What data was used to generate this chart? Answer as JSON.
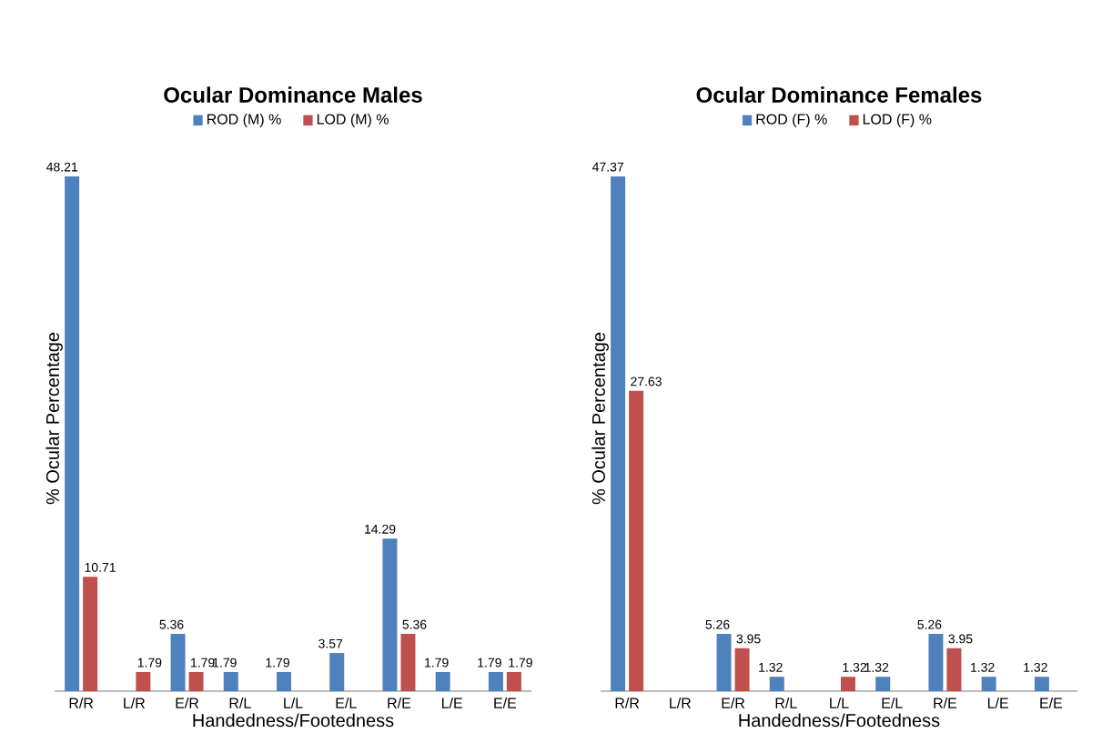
{
  "chart_data": [
    {
      "type": "bar",
      "title": "Ocular Dominance  Males",
      "xlabel": "Handedness/Footedness",
      "ylabel": "% Ocular Percentage",
      "categories": [
        "R/R",
        "L/R",
        "E/R",
        "R/L",
        "L/L",
        "E/L",
        "R/E",
        "L/E",
        "E/E"
      ],
      "legend": "top",
      "data_labels": true,
      "series": [
        {
          "name": "ROD (M) %",
          "color": "#4f81bd",
          "values": [
            48.21,
            null,
            5.36,
            1.79,
            1.79,
            3.57,
            14.29,
            1.79,
            1.79
          ]
        },
        {
          "name": "LOD (M) %",
          "color": "#c0504d",
          "values": [
            10.71,
            1.79,
            1.79,
            null,
            null,
            null,
            5.36,
            null,
            1.79
          ]
        }
      ]
    },
    {
      "type": "bar",
      "title": "Ocular Dominance  Females",
      "xlabel": "Handedness/Footedness",
      "ylabel": "% Ocular Percentage",
      "categories": [
        "R/R",
        "L/R",
        "E/R",
        "R/L",
        "L/L",
        "E/L",
        "R/E",
        "L/E",
        "E/E"
      ],
      "legend": "top",
      "data_labels": true,
      "series": [
        {
          "name": "ROD (F) %",
          "color": "#4f81bd",
          "values": [
            47.37,
            null,
            5.26,
            1.32,
            null,
            1.32,
            5.26,
            1.32,
            1.32
          ]
        },
        {
          "name": "LOD (F) %",
          "color": "#c0504d",
          "values": [
            27.63,
            null,
            3.95,
            null,
            1.32,
            null,
            3.95,
            null,
            null
          ]
        }
      ]
    }
  ]
}
